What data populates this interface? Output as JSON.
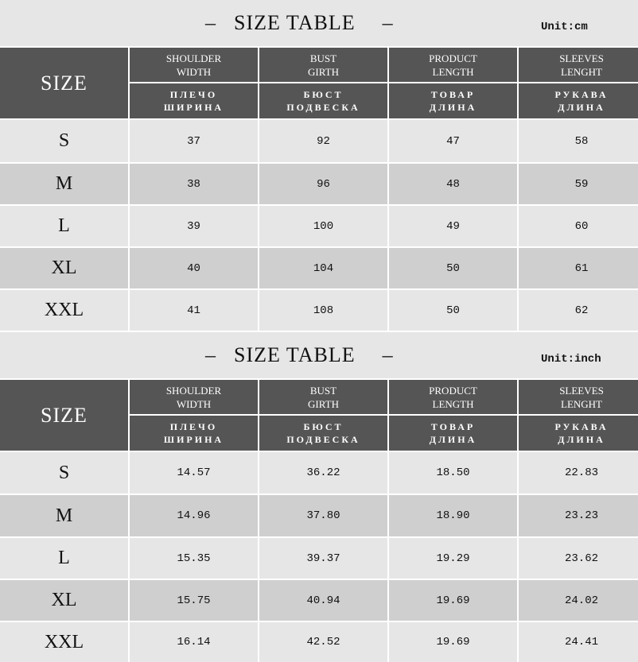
{
  "tables": [
    {
      "title": "SIZE TABLE",
      "dash": "–",
      "unit": "Unit:cm",
      "headers": {
        "size": "SIZE",
        "cols": [
          {
            "en": "SHOULDER\nWIDTH",
            "ru": "ПЛЕЧО\nШИРИНА"
          },
          {
            "en": "BUST\nGIRTH",
            "ru": "БЮСТ\nПОДВЕСКА"
          },
          {
            "en": "PRODUCT\nLENGTH",
            "ru": "ТОВАР\nДЛИНА"
          },
          {
            "en": "SLEEVES\nLENGHT",
            "ru": "РУКАВА\nДЛИНА"
          }
        ]
      },
      "rows": [
        [
          "S",
          "37",
          "92",
          "47",
          "58"
        ],
        [
          "M",
          "38",
          "96",
          "48",
          "59"
        ],
        [
          "L",
          "39",
          "100",
          "49",
          "60"
        ],
        [
          "XL",
          "40",
          "104",
          "50",
          "61"
        ],
        [
          "XXL",
          "41",
          "108",
          "50",
          "62"
        ]
      ]
    },
    {
      "title": "SIZE TABLE",
      "dash": "–",
      "unit": "Unit:inch",
      "headers": {
        "size": "SIZE",
        "cols": [
          {
            "en": "SHOULDER\nWIDTH",
            "ru": "ПЛЕЧО\nШИРИНА"
          },
          {
            "en": "BUST\nGIRTH",
            "ru": "БЮСТ\nПОДВЕСКА"
          },
          {
            "en": "PRODUCT\nLENGTH",
            "ru": "ТОВАР\nДЛИНА"
          },
          {
            "en": "SLEEVES\nLENGHT",
            "ru": "РУКАВА\nДЛИНА"
          }
        ]
      },
      "rows": [
        [
          "S",
          "14.57",
          "36.22",
          "18.50",
          "22.83"
        ],
        [
          "M",
          "14.96",
          "37.80",
          "18.90",
          "23.23"
        ],
        [
          "L",
          "15.35",
          "39.37",
          "19.29",
          "23.62"
        ],
        [
          "XL",
          "15.75",
          "40.94",
          "19.69",
          "24.02"
        ],
        [
          "XXL",
          "16.14",
          "42.52",
          "19.69",
          "24.41"
        ]
      ]
    }
  ]
}
